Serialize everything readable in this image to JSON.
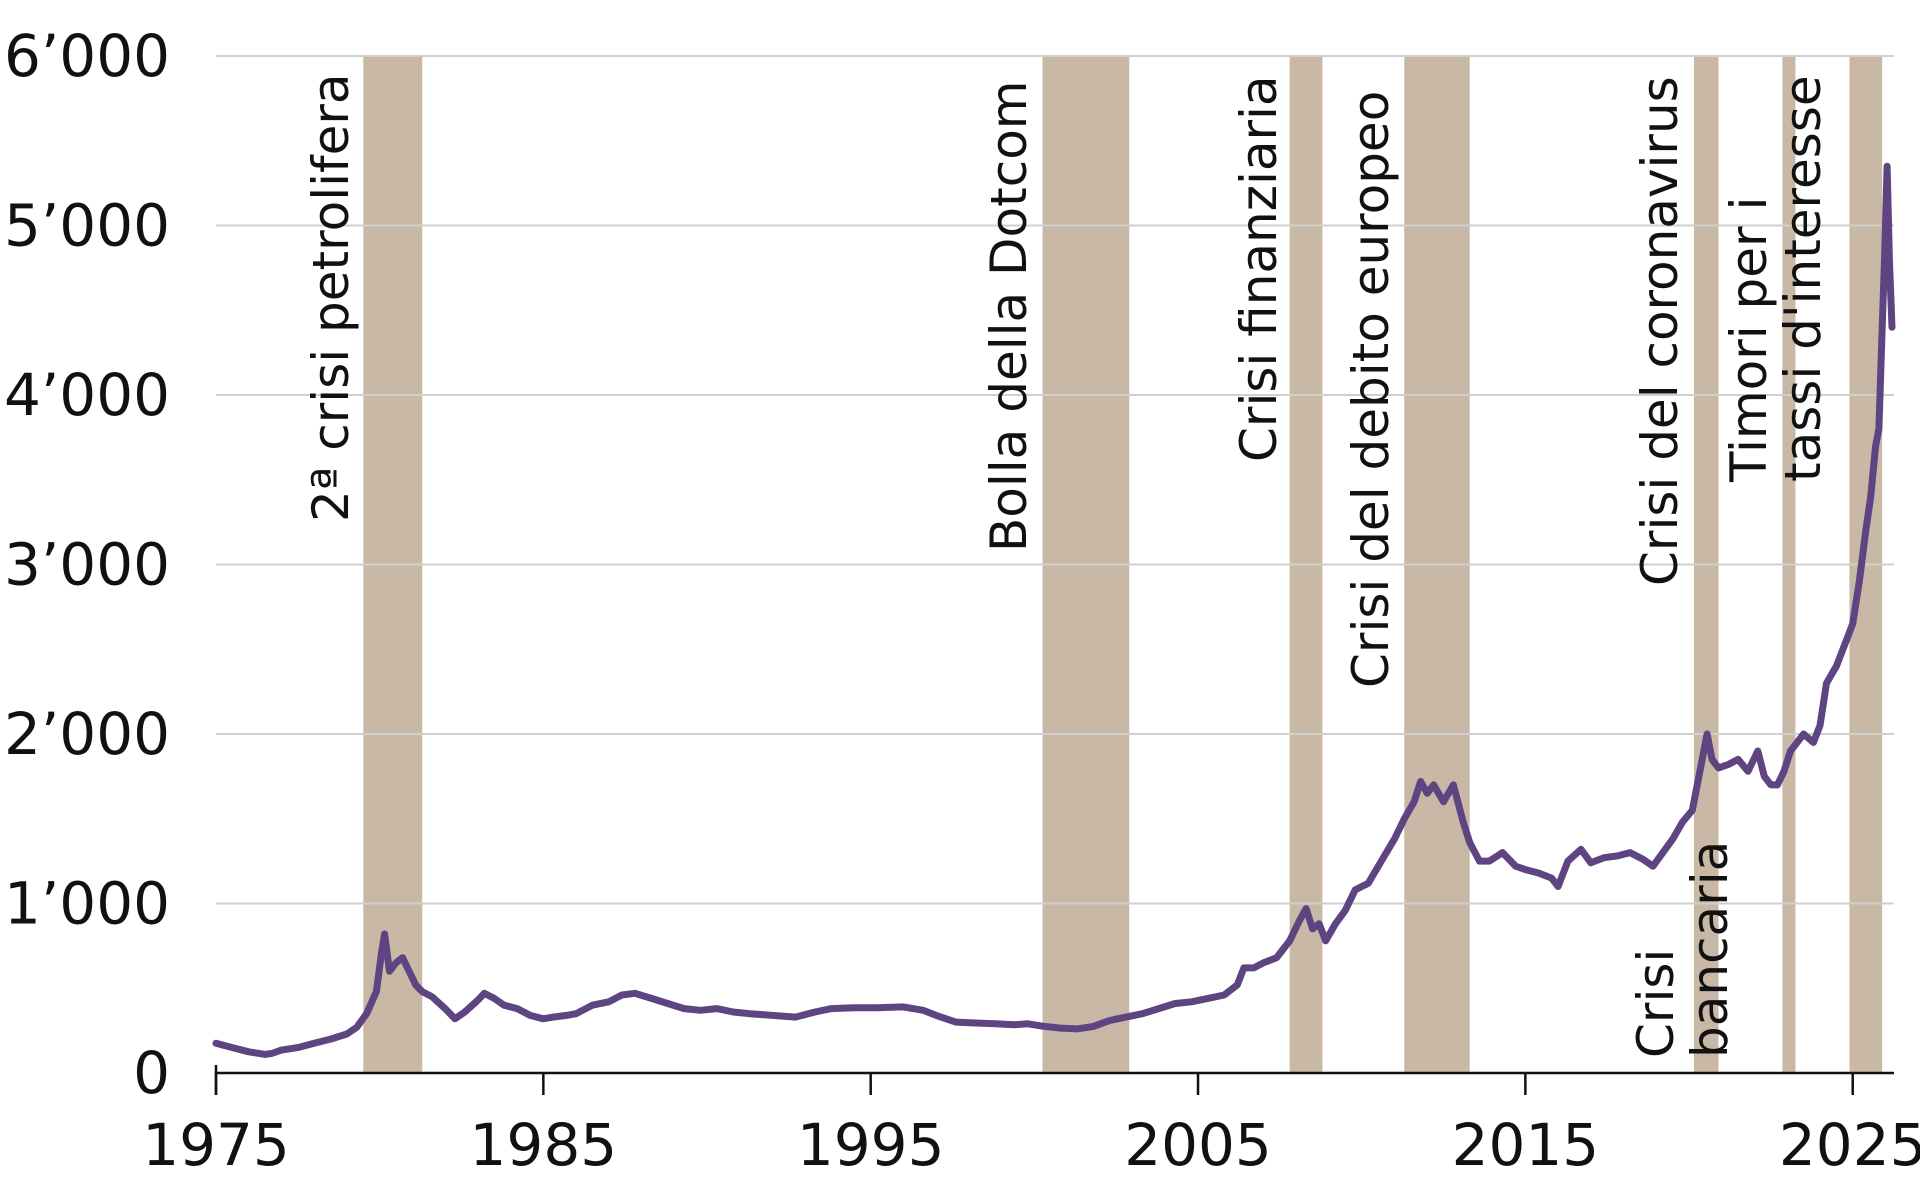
{
  "chart_data": {
    "type": "line",
    "title": "",
    "xlabel": "",
    "ylabel": "",
    "xlim": [
      1975,
      2026.2
    ],
    "ylim": [
      0,
      6000
    ],
    "x_ticks": [
      1975,
      1985,
      1995,
      2005,
      2015,
      2025
    ],
    "x_tick_labels": [
      "1975",
      "1985",
      "1995",
      "2005",
      "2015",
      "2025"
    ],
    "y_ticks": [
      0,
      1000,
      2000,
      3000,
      4000,
      5000,
      6000
    ],
    "y_tick_labels": [
      "0",
      "1’000",
      "2’000",
      "3’000",
      "4’000",
      "5’000",
      "6’000"
    ],
    "grid": "horizontal",
    "colors": {
      "line": "#5e4582",
      "band": "#c8b8a5",
      "grid": "#cfcfcf",
      "axis": "#111111"
    },
    "crisis_bands": [
      {
        "label": "2ª crisi petrolifera",
        "start": 1979.5,
        "end": 1981.3
      },
      {
        "label": "Bolla della Dotcom",
        "start": 2000.25,
        "end": 2002.9
      },
      {
        "label": "Crisi finanziaria",
        "start": 2007.8,
        "end": 2008.8
      },
      {
        "label": "Crisi del debito europeo",
        "start": 2011.3,
        "end": 2013.3
      },
      {
        "label": "Crisi del coronavirus",
        "start": 2020.15,
        "end": 2020.9
      },
      {
        "label": "Crisi bancaria",
        "start": 2022.85,
        "end": 2023.25
      },
      {
        "label": "Timori per i tassi d'interesse",
        "start": 2024.9,
        "end": 2025.9
      }
    ],
    "series": [
      {
        "x": [
          1975.0,
          1975.5,
          1976.0,
          1976.5,
          1976.7,
          1977.0,
          1977.5,
          1978.0,
          1978.5,
          1979.0,
          1979.3,
          1979.6,
          1979.9,
          1980.05,
          1980.15,
          1980.3,
          1980.5,
          1980.7,
          1980.9,
          1981.1,
          1981.3,
          1981.6,
          1982.0,
          1982.3,
          1982.6,
          1983.0,
          1983.2,
          1983.5,
          1983.8,
          1984.2,
          1984.6,
          1985.0,
          1985.3,
          1985.7,
          1986.0,
          1986.5,
          1987.0,
          1987.4,
          1987.8,
          1988.3,
          1988.8,
          1989.3,
          1989.8,
          1990.3,
          1990.8,
          1991.3,
          1992.0,
          1992.7,
          1993.3,
          1993.8,
          1994.5,
          1995.2,
          1996.0,
          1996.6,
          1997.0,
          1997.6,
          1998.2,
          1998.8,
          1999.4,
          1999.8,
          2000.3,
          2000.8,
          2001.3,
          2001.8,
          2002.3,
          2002.8,
          2003.3,
          2003.8,
          2004.3,
          2004.8,
          2005.3,
          2005.8,
          2006.2,
          2006.4,
          2006.7,
          2007.0,
          2007.4,
          2007.8,
          2008.1,
          2008.3,
          2008.5,
          2008.7,
          2008.9,
          2009.2,
          2009.5,
          2009.8,
          2010.2,
          2010.6,
          2011.0,
          2011.3,
          2011.6,
          2011.8,
          2012.0,
          2012.2,
          2012.5,
          2012.8,
          2013.1,
          2013.3,
          2013.6,
          2013.9,
          2014.3,
          2014.7,
          2015.0,
          2015.4,
          2015.8,
          2016.0,
          2016.3,
          2016.7,
          2017.0,
          2017.4,
          2017.8,
          2018.2,
          2018.6,
          2018.9,
          2019.2,
          2019.5,
          2019.8,
          2020.1,
          2020.3,
          2020.55,
          2020.7,
          2020.9,
          2021.2,
          2021.5,
          2021.8,
          2022.1,
          2022.3,
          2022.5,
          2022.7,
          2022.9,
          2023.1,
          2023.3,
          2023.5,
          2023.8,
          2024.0,
          2024.2,
          2024.5,
          2024.8,
          2025.0,
          2025.2,
          2025.4,
          2025.55,
          2025.7,
          2025.8,
          2025.9,
          2025.97,
          2026.05,
          2026.12,
          2026.2
        ],
        "y": [
          175,
          150,
          125,
          110,
          115,
          135,
          150,
          175,
          200,
          230,
          270,
          350,
          480,
          700,
          820,
          600,
          650,
          680,
          600,
          520,
          480,
          450,
          380,
          320,
          360,
          430,
          470,
          440,
          400,
          380,
          340,
          320,
          330,
          340,
          350,
          400,
          420,
          460,
          470,
          440,
          410,
          380,
          370,
          380,
          360,
          350,
          340,
          330,
          360,
          380,
          385,
          385,
          390,
          370,
          340,
          300,
          295,
          290,
          285,
          290,
          275,
          265,
          260,
          275,
          310,
          330,
          350,
          380,
          410,
          420,
          440,
          460,
          520,
          620,
          620,
          650,
          680,
          780,
          900,
          970,
          850,
          880,
          780,
          880,
          960,
          1080,
          1120,
          1250,
          1380,
          1500,
          1600,
          1720,
          1650,
          1700,
          1600,
          1700,
          1480,
          1360,
          1250,
          1250,
          1300,
          1220,
          1200,
          1180,
          1150,
          1100,
          1250,
          1320,
          1240,
          1270,
          1280,
          1300,
          1260,
          1220,
          1300,
          1380,
          1480,
          1550,
          1750,
          2000,
          1850,
          1800,
          1820,
          1850,
          1780,
          1900,
          1750,
          1700,
          1700,
          1780,
          1900,
          1950,
          2000,
          1950,
          2050,
          2300,
          2400,
          2550,
          2650,
          2900,
          3200,
          3400,
          3700,
          3800,
          4400,
          4800,
          5350,
          4800,
          4400
        ]
      }
    ]
  }
}
